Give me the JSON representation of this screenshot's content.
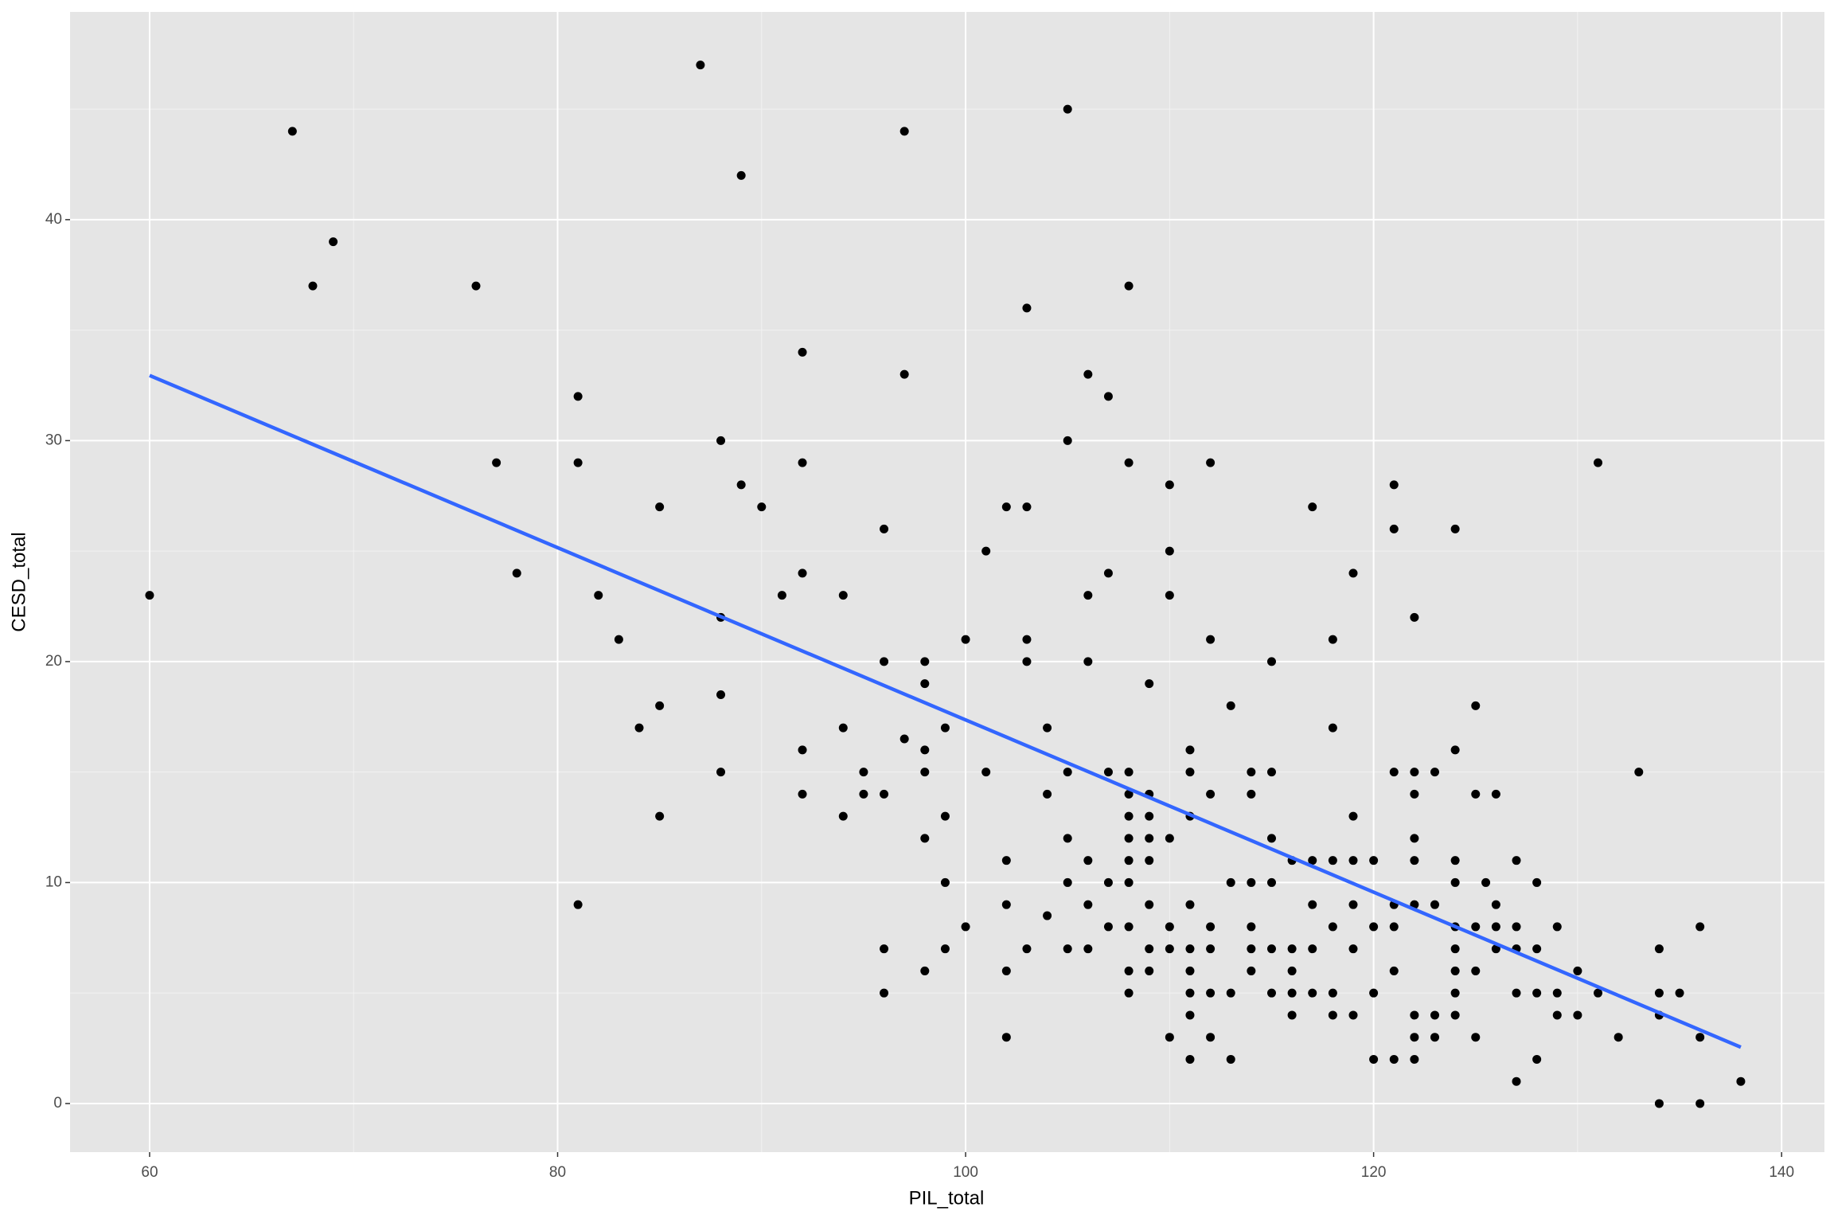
{
  "chart_data": {
    "type": "scatter",
    "x_label": "PIL_total",
    "y_label": "CESD_total",
    "xlim": [
      56.1,
      142.1
    ],
    "ylim": [
      -2.2,
      49.4
    ],
    "xticks": [
      60,
      80,
      100,
      120,
      140
    ],
    "yticks": [
      0,
      10,
      20,
      30,
      40
    ],
    "grid": true,
    "background": "#e5e5e5",
    "series": [
      {
        "color": "#000000",
        "x": [
          60,
          67,
          68,
          69,
          76,
          77,
          78,
          81,
          81,
          81,
          82,
          83,
          84,
          85,
          85,
          85,
          87,
          88,
          88,
          88,
          88,
          89,
          89,
          90,
          91,
          92,
          92,
          92,
          92,
          92,
          94,
          94,
          94,
          95,
          95,
          96,
          96,
          96,
          96,
          96,
          97,
          97,
          97,
          98,
          98,
          98,
          98,
          98,
          98,
          99,
          99,
          99,
          99,
          100,
          100,
          101,
          101,
          102,
          102,
          102,
          102,
          102,
          103,
          103,
          103,
          103,
          103,
          104,
          104,
          104,
          105,
          105,
          105,
          105,
          105,
          105,
          106,
          106,
          106,
          106,
          106,
          106,
          107,
          107,
          107,
          107,
          107,
          108,
          108,
          108,
          108,
          108,
          108,
          108,
          108,
          108,
          108,
          108,
          109,
          109,
          109,
          109,
          109,
          109,
          109,
          109,
          110,
          110,
          110,
          110,
          110,
          110,
          110,
          111,
          111,
          111,
          111,
          111,
          111,
          111,
          111,
          111,
          112,
          112,
          112,
          112,
          112,
          112,
          112,
          113,
          113,
          113,
          113,
          114,
          114,
          114,
          114,
          114,
          114,
          115,
          115,
          115,
          115,
          115,
          115,
          116,
          116,
          116,
          116,
          116,
          117,
          117,
          117,
          117,
          117,
          118,
          118,
          118,
          118,
          118,
          118,
          119,
          119,
          119,
          119,
          119,
          119,
          120,
          120,
          120,
          120,
          121,
          121,
          121,
          121,
          121,
          121,
          121,
          122,
          122,
          122,
          122,
          122,
          122,
          122,
          122,
          122,
          123,
          123,
          123,
          123,
          124,
          124,
          124,
          124,
          124,
          124,
          124,
          124,
          124,
          125,
          125,
          125,
          125,
          125,
          125.5,
          126,
          126,
          126,
          126,
          127,
          127,
          127,
          127,
          127,
          128,
          128,
          128,
          128,
          129,
          129,
          129,
          130,
          130,
          131,
          131,
          132,
          133,
          134,
          134,
          134,
          134,
          135,
          136,
          136,
          136,
          138
        ],
        "values": [
          23,
          44,
          37,
          39,
          37,
          29,
          24,
          32,
          29,
          9,
          23,
          21,
          17,
          27,
          18,
          13,
          47,
          30,
          22,
          18.5,
          15,
          42,
          28,
          27,
          23,
          34,
          29,
          24,
          16,
          14,
          23,
          17,
          13,
          15,
          14,
          26,
          20,
          14,
          7,
          5,
          44,
          33,
          16.5,
          20,
          19,
          16,
          15,
          12,
          6,
          17,
          13,
          10,
          7,
          21,
          8,
          25,
          15,
          27,
          11,
          9,
          6,
          3,
          36,
          27,
          21,
          20,
          7,
          17,
          14,
          8.5,
          45,
          30,
          15,
          12,
          10,
          7,
          33,
          23,
          20,
          11,
          9,
          7,
          32,
          24,
          15,
          10,
          8,
          37,
          29,
          15,
          14,
          13,
          12,
          11,
          10,
          8,
          6,
          5,
          19,
          14,
          13,
          12,
          11,
          9,
          7,
          6,
          28,
          25,
          23,
          12,
          8,
          7,
          3,
          16,
          15,
          13,
          9,
          7,
          6,
          5,
          4,
          2,
          29,
          21,
          14,
          8,
          7,
          5,
          3,
          18,
          10,
          5,
          2,
          15,
          14,
          10,
          8,
          7,
          6,
          20,
          15,
          12,
          10,
          7,
          5,
          11,
          7,
          6,
          5,
          4,
          27,
          11,
          9,
          7,
          5,
          21,
          17,
          11,
          8,
          5,
          4,
          24,
          13,
          11,
          9,
          7,
          4,
          11,
          8,
          5,
          2,
          28,
          26,
          15,
          9,
          8,
          6,
          2,
          22,
          15,
          14,
          12,
          11,
          9,
          4,
          3,
          2,
          15,
          9,
          4,
          3,
          26,
          16,
          11,
          10,
          8,
          7,
          6,
          5,
          4,
          18,
          14,
          8,
          6,
          3,
          10,
          14,
          9,
          8,
          7,
          11,
          8,
          7,
          5,
          1,
          10,
          7,
          5,
          2,
          8,
          5,
          4,
          6,
          4,
          29,
          5,
          3,
          15,
          7,
          5,
          4,
          0,
          5,
          8,
          3,
          0,
          1
        ]
      }
    ],
    "fit_line": {
      "color": "#3366ff",
      "x": [
        60,
        138
      ],
      "values": [
        32.95,
        2.55
      ]
    }
  }
}
